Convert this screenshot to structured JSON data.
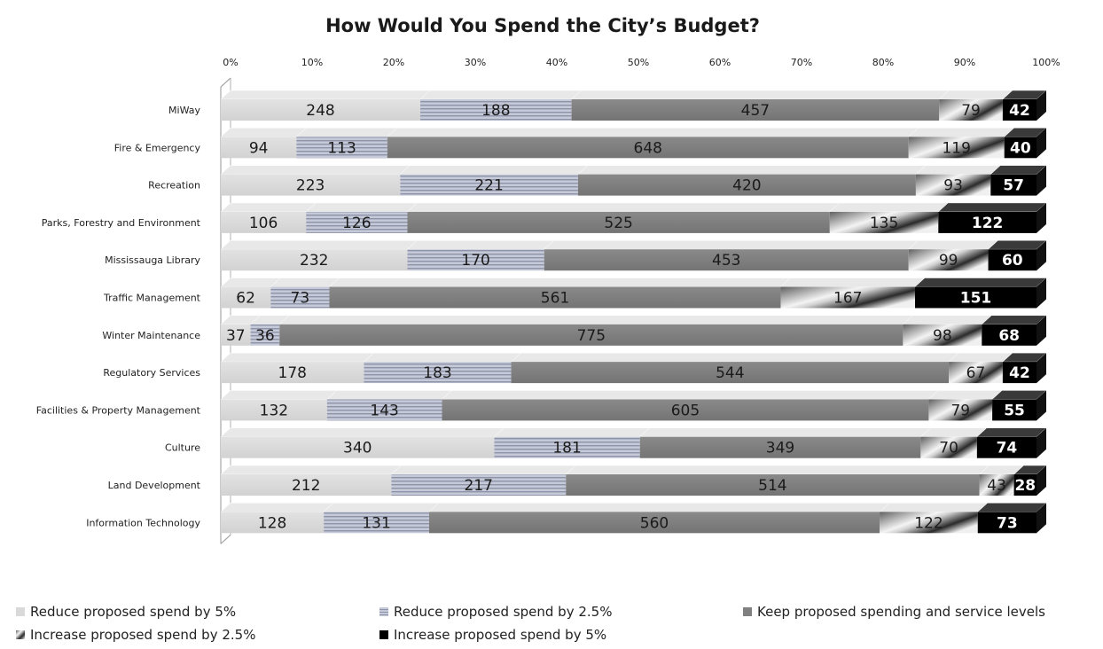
{
  "chart_data": {
    "type": "bar",
    "title": "How Would You Spend the City’s Budget?",
    "orientation": "horizontal",
    "stacked": "percent",
    "x_ticks": [
      "0%",
      "10%",
      "20%",
      "30%",
      "40%",
      "50%",
      "60%",
      "70%",
      "80%",
      "90%",
      "100%"
    ],
    "xlim": [
      0,
      100
    ],
    "legend_position": "bottom",
    "categories": [
      "MiWay",
      "Fire & Emergency",
      "Recreation",
      "Parks, Forestry and Environment",
      "Mississauga Library",
      "Traffic Management",
      "Winter Maintenance",
      "Regulatory Services",
      "Facilities & Property Management",
      "Culture",
      "Land Development",
      "Information Technology"
    ],
    "series": [
      {
        "name": "Reduce proposed spend by 5%",
        "color": "#d9d9d9",
        "values": [
          248,
          94,
          223,
          106,
          232,
          62,
          37,
          178,
          132,
          340,
          212,
          128
        ]
      },
      {
        "name": "Reduce proposed spend by 2.5%",
        "color": "#b4b8c8",
        "values": [
          188,
          113,
          221,
          126,
          170,
          73,
          36,
          183,
          143,
          181,
          217,
          131
        ]
      },
      {
        "name": "Keep proposed spending and service levels",
        "color": "#808080",
        "values": [
          457,
          648,
          420,
          525,
          453,
          561,
          775,
          544,
          605,
          349,
          514,
          560
        ]
      },
      {
        "name": "Increase proposed spend by 2.5%",
        "color": "#9a9a9a",
        "values": [
          79,
          119,
          93,
          135,
          99,
          167,
          98,
          67,
          79,
          70,
          43,
          122
        ]
      },
      {
        "name": "Increase proposed spend by 5%",
        "color": "#000000",
        "values": [
          42,
          40,
          57,
          122,
          60,
          151,
          68,
          42,
          55,
          74,
          28,
          73
        ]
      }
    ]
  }
}
